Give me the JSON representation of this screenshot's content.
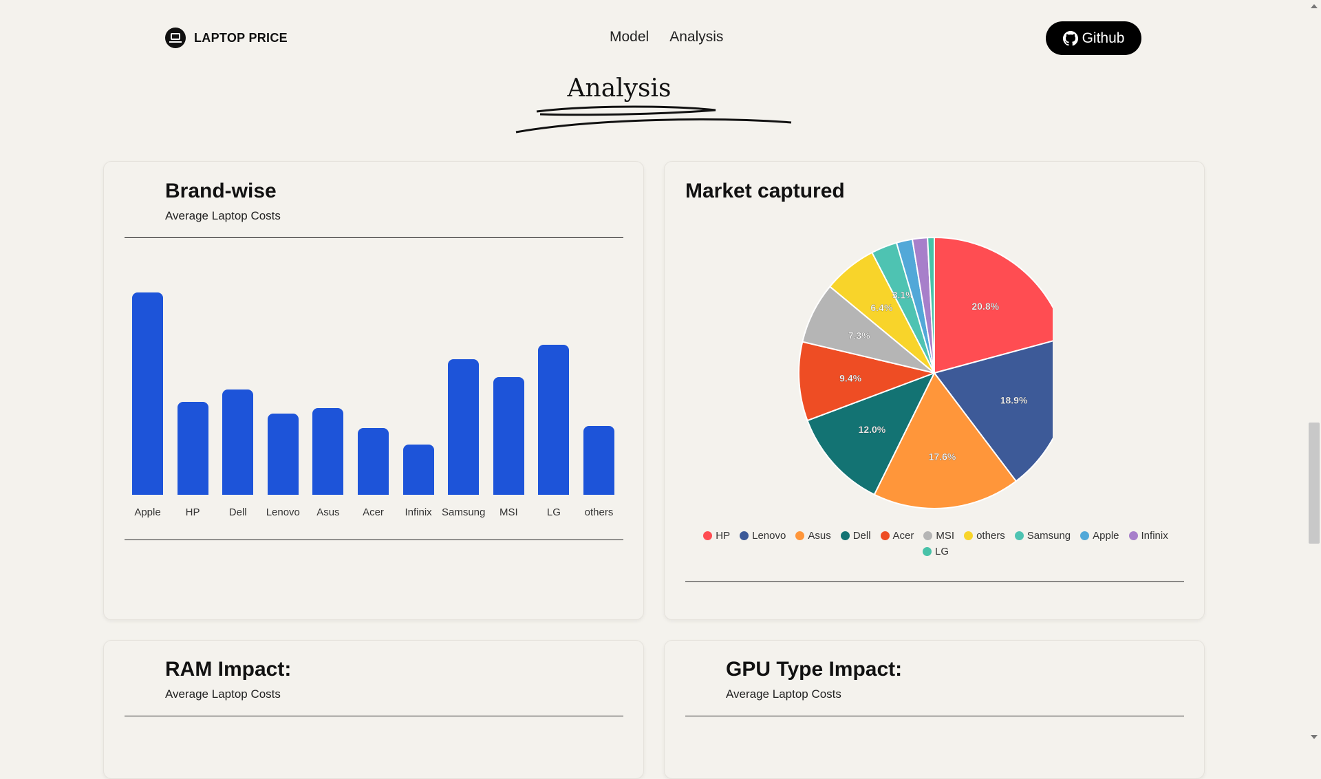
{
  "nav": {
    "brand": "LAPTOP PRICE",
    "links": [
      "Model",
      "Analysis"
    ],
    "github_label": "Github"
  },
  "page_title": "Analysis",
  "cards": {
    "brand_wise": {
      "title": "Brand-wise",
      "subtitle": "Average Laptop Costs"
    },
    "market": {
      "title": "Market captured"
    },
    "ram": {
      "title": "RAM Impact:",
      "subtitle": "Average Laptop Costs"
    },
    "gpu": {
      "title": "GPU Type Impact:",
      "subtitle": "Average Laptop Costs"
    }
  },
  "chart_data": [
    {
      "type": "bar",
      "categories": [
        "Apple",
        "HP",
        "Dell",
        "Lenovo",
        "Asus",
        "Acer",
        "Infinix",
        "Samsung",
        "MSI",
        "LG",
        "others"
      ],
      "values": [
        100,
        46,
        52,
        40,
        43,
        33,
        25,
        67,
        58,
        74,
        34
      ],
      "ylim": [
        0,
        100
      ],
      "color": "#1d54d9"
    },
    {
      "type": "pie",
      "labels": [
        "HP",
        "Lenovo",
        "Asus",
        "Dell",
        "Acer",
        "MSI",
        "others",
        "Samsung",
        "Apple",
        "Infinix",
        "LG"
      ],
      "values": [
        20.8,
        18.9,
        17.6,
        12.0,
        9.4,
        7.3,
        6.4,
        3.1,
        1.9,
        1.8,
        0.8
      ],
      "data_labels": [
        "20.8%",
        "18.9%",
        "17.6%",
        "12.0%",
        "9.4%",
        "7.3%",
        "6.4%",
        "3.1%",
        "",
        "",
        ""
      ],
      "colors": [
        "#ff4d52",
        "#3d5a98",
        "#ff963a",
        "#137373",
        "#ee4d24",
        "#b5b5b5",
        "#f8d42a",
        "#4ec3b2",
        "#52a8d8",
        "#a77fca",
        "#48c2a8"
      ],
      "legend_placement": "bottom"
    }
  ]
}
